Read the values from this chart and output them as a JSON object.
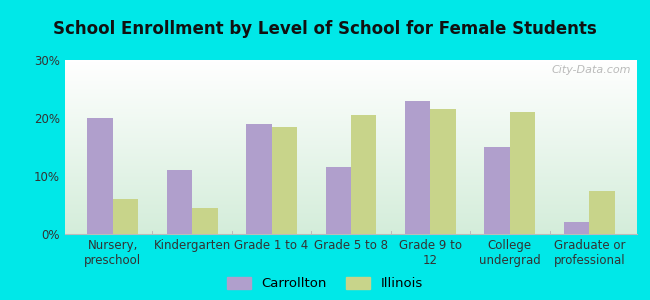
{
  "title": "School Enrollment by Level of School for Female Students",
  "categories": [
    "Nursery,\npreschool",
    "Kindergarten",
    "Grade 1 to 4",
    "Grade 5 to 8",
    "Grade 9 to\n12",
    "College\nundergrad",
    "Graduate or\nprofessional"
  ],
  "carrollton": [
    20,
    11,
    19,
    11.5,
    23,
    15,
    2
  ],
  "illinois": [
    6,
    4.5,
    18.5,
    20.5,
    21.5,
    21,
    7.5
  ],
  "carrollton_color": "#b09fcc",
  "illinois_color": "#c8d48a",
  "background_outer": "#00e8e8",
  "background_inner_top": "#ffffff",
  "background_inner_bottom": "#d4edda",
  "grid_color": "#bbbbbb",
  "ylim": [
    0,
    30
  ],
  "yticks": [
    0,
    10,
    20,
    30
  ],
  "ytick_labels": [
    "0%",
    "10%",
    "20%",
    "30%"
  ],
  "legend_label_carrollton": "Carrollton",
  "legend_label_illinois": "Illinois",
  "watermark": "City-Data.com",
  "title_fontsize": 12,
  "tick_fontsize": 8.5,
  "legend_fontsize": 9.5
}
